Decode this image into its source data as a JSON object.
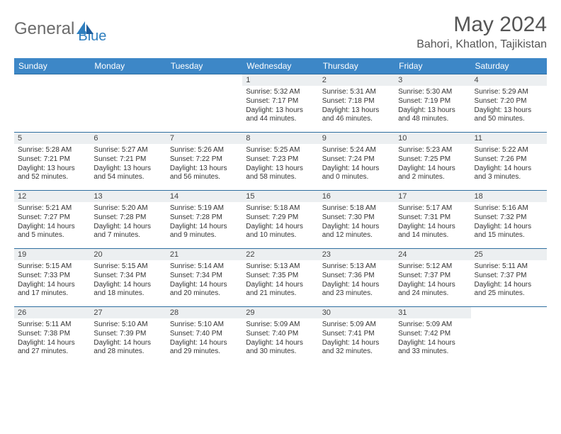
{
  "logo": {
    "part1": "General",
    "part2": "Blue"
  },
  "title": {
    "month": "May 2024",
    "location": "Bahori, Khatlon, Tajikistan"
  },
  "header_color": "#3d87c7",
  "row_border_color": "#2f6ea0",
  "day_num_bg": "#eceff1",
  "weekdays": [
    "Sunday",
    "Monday",
    "Tuesday",
    "Wednesday",
    "Thursday",
    "Friday",
    "Saturday"
  ],
  "weeks": [
    [
      {
        "day": "",
        "lines": []
      },
      {
        "day": "",
        "lines": []
      },
      {
        "day": "",
        "lines": []
      },
      {
        "day": "1",
        "lines": [
          "Sunrise: 5:32 AM",
          "Sunset: 7:17 PM",
          "Daylight: 13 hours",
          "and 44 minutes."
        ]
      },
      {
        "day": "2",
        "lines": [
          "Sunrise: 5:31 AM",
          "Sunset: 7:18 PM",
          "Daylight: 13 hours",
          "and 46 minutes."
        ]
      },
      {
        "day": "3",
        "lines": [
          "Sunrise: 5:30 AM",
          "Sunset: 7:19 PM",
          "Daylight: 13 hours",
          "and 48 minutes."
        ]
      },
      {
        "day": "4",
        "lines": [
          "Sunrise: 5:29 AM",
          "Sunset: 7:20 PM",
          "Daylight: 13 hours",
          "and 50 minutes."
        ]
      }
    ],
    [
      {
        "day": "5",
        "lines": [
          "Sunrise: 5:28 AM",
          "Sunset: 7:21 PM",
          "Daylight: 13 hours",
          "and 52 minutes."
        ]
      },
      {
        "day": "6",
        "lines": [
          "Sunrise: 5:27 AM",
          "Sunset: 7:21 PM",
          "Daylight: 13 hours",
          "and 54 minutes."
        ]
      },
      {
        "day": "7",
        "lines": [
          "Sunrise: 5:26 AM",
          "Sunset: 7:22 PM",
          "Daylight: 13 hours",
          "and 56 minutes."
        ]
      },
      {
        "day": "8",
        "lines": [
          "Sunrise: 5:25 AM",
          "Sunset: 7:23 PM",
          "Daylight: 13 hours",
          "and 58 minutes."
        ]
      },
      {
        "day": "9",
        "lines": [
          "Sunrise: 5:24 AM",
          "Sunset: 7:24 PM",
          "Daylight: 14 hours",
          "and 0 minutes."
        ]
      },
      {
        "day": "10",
        "lines": [
          "Sunrise: 5:23 AM",
          "Sunset: 7:25 PM",
          "Daylight: 14 hours",
          "and 2 minutes."
        ]
      },
      {
        "day": "11",
        "lines": [
          "Sunrise: 5:22 AM",
          "Sunset: 7:26 PM",
          "Daylight: 14 hours",
          "and 3 minutes."
        ]
      }
    ],
    [
      {
        "day": "12",
        "lines": [
          "Sunrise: 5:21 AM",
          "Sunset: 7:27 PM",
          "Daylight: 14 hours",
          "and 5 minutes."
        ]
      },
      {
        "day": "13",
        "lines": [
          "Sunrise: 5:20 AM",
          "Sunset: 7:28 PM",
          "Daylight: 14 hours",
          "and 7 minutes."
        ]
      },
      {
        "day": "14",
        "lines": [
          "Sunrise: 5:19 AM",
          "Sunset: 7:28 PM",
          "Daylight: 14 hours",
          "and 9 minutes."
        ]
      },
      {
        "day": "15",
        "lines": [
          "Sunrise: 5:18 AM",
          "Sunset: 7:29 PM",
          "Daylight: 14 hours",
          "and 10 minutes."
        ]
      },
      {
        "day": "16",
        "lines": [
          "Sunrise: 5:18 AM",
          "Sunset: 7:30 PM",
          "Daylight: 14 hours",
          "and 12 minutes."
        ]
      },
      {
        "day": "17",
        "lines": [
          "Sunrise: 5:17 AM",
          "Sunset: 7:31 PM",
          "Daylight: 14 hours",
          "and 14 minutes."
        ]
      },
      {
        "day": "18",
        "lines": [
          "Sunrise: 5:16 AM",
          "Sunset: 7:32 PM",
          "Daylight: 14 hours",
          "and 15 minutes."
        ]
      }
    ],
    [
      {
        "day": "19",
        "lines": [
          "Sunrise: 5:15 AM",
          "Sunset: 7:33 PM",
          "Daylight: 14 hours",
          "and 17 minutes."
        ]
      },
      {
        "day": "20",
        "lines": [
          "Sunrise: 5:15 AM",
          "Sunset: 7:34 PM",
          "Daylight: 14 hours",
          "and 18 minutes."
        ]
      },
      {
        "day": "21",
        "lines": [
          "Sunrise: 5:14 AM",
          "Sunset: 7:34 PM",
          "Daylight: 14 hours",
          "and 20 minutes."
        ]
      },
      {
        "day": "22",
        "lines": [
          "Sunrise: 5:13 AM",
          "Sunset: 7:35 PM",
          "Daylight: 14 hours",
          "and 21 minutes."
        ]
      },
      {
        "day": "23",
        "lines": [
          "Sunrise: 5:13 AM",
          "Sunset: 7:36 PM",
          "Daylight: 14 hours",
          "and 23 minutes."
        ]
      },
      {
        "day": "24",
        "lines": [
          "Sunrise: 5:12 AM",
          "Sunset: 7:37 PM",
          "Daylight: 14 hours",
          "and 24 minutes."
        ]
      },
      {
        "day": "25",
        "lines": [
          "Sunrise: 5:11 AM",
          "Sunset: 7:37 PM",
          "Daylight: 14 hours",
          "and 25 minutes."
        ]
      }
    ],
    [
      {
        "day": "26",
        "lines": [
          "Sunrise: 5:11 AM",
          "Sunset: 7:38 PM",
          "Daylight: 14 hours",
          "and 27 minutes."
        ]
      },
      {
        "day": "27",
        "lines": [
          "Sunrise: 5:10 AM",
          "Sunset: 7:39 PM",
          "Daylight: 14 hours",
          "and 28 minutes."
        ]
      },
      {
        "day": "28",
        "lines": [
          "Sunrise: 5:10 AM",
          "Sunset: 7:40 PM",
          "Daylight: 14 hours",
          "and 29 minutes."
        ]
      },
      {
        "day": "29",
        "lines": [
          "Sunrise: 5:09 AM",
          "Sunset: 7:40 PM",
          "Daylight: 14 hours",
          "and 30 minutes."
        ]
      },
      {
        "day": "30",
        "lines": [
          "Sunrise: 5:09 AM",
          "Sunset: 7:41 PM",
          "Daylight: 14 hours",
          "and 32 minutes."
        ]
      },
      {
        "day": "31",
        "lines": [
          "Sunrise: 5:09 AM",
          "Sunset: 7:42 PM",
          "Daylight: 14 hours",
          "and 33 minutes."
        ]
      },
      {
        "day": "",
        "lines": []
      }
    ]
  ]
}
